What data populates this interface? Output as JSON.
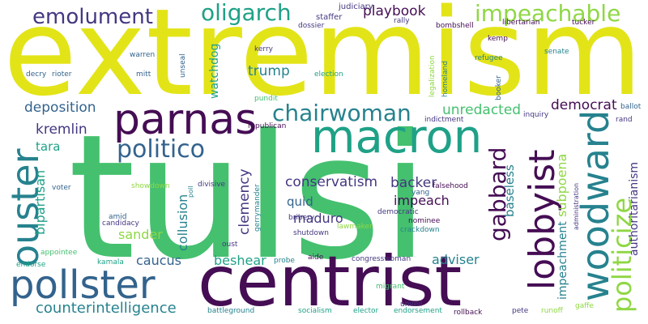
{
  "palette": {
    "yellow": "#e3e418",
    "green": "#45c06f",
    "lightgreen": "#8fd744",
    "teal": "#1fa187",
    "cyan": "#26828e",
    "blue": "#33638d",
    "indigo": "#453781",
    "purple": "#450d54"
  },
  "words": [
    {
      "text": "extremism"
    },
    {
      "text": "tulsi"
    },
    {
      "text": "centrist"
    },
    {
      "text": "macron"
    },
    {
      "text": "parnas"
    },
    {
      "text": "pollster"
    },
    {
      "text": "ouster"
    },
    {
      "text": "woodward"
    },
    {
      "text": "lobbyist"
    },
    {
      "text": "politicize"
    },
    {
      "text": "impeachable"
    },
    {
      "text": "oligarch"
    },
    {
      "text": "emolument"
    },
    {
      "text": "politico"
    },
    {
      "text": "chairwoman"
    },
    {
      "text": "gabbard"
    },
    {
      "text": "conservatism"
    },
    {
      "text": "counterintelligence"
    },
    {
      "text": "playbook"
    },
    {
      "text": "deposition"
    },
    {
      "text": "unredacted"
    },
    {
      "text": "democrat"
    },
    {
      "text": "kremlin"
    },
    {
      "text": "trump"
    },
    {
      "text": "backer"
    },
    {
      "text": "impeach"
    },
    {
      "text": "maduro"
    },
    {
      "text": "sander"
    },
    {
      "text": "caucus"
    },
    {
      "text": "beshear"
    },
    {
      "text": "adviser"
    },
    {
      "text": "quid"
    },
    {
      "text": "tara"
    },
    {
      "text": "clemency"
    },
    {
      "text": "bipartisan"
    },
    {
      "text": "collusion"
    },
    {
      "text": "subpoena"
    },
    {
      "text": "baseless"
    },
    {
      "text": "impeachment"
    },
    {
      "text": "authoritarianism"
    },
    {
      "text": "watchdog"
    },
    {
      "text": "judiciary"
    },
    {
      "text": "staffer"
    },
    {
      "text": "dossier"
    },
    {
      "text": "rally"
    },
    {
      "text": "bombshell"
    },
    {
      "text": "libertarian"
    },
    {
      "text": "tucker"
    },
    {
      "text": "kemp"
    },
    {
      "text": "refugee"
    },
    {
      "text": "senate"
    },
    {
      "text": "legalization"
    },
    {
      "text": "homeland"
    },
    {
      "text": "booker"
    },
    {
      "text": "kerry"
    },
    {
      "text": "warren"
    },
    {
      "text": "mitt"
    },
    {
      "text": "unseal"
    },
    {
      "text": "election"
    },
    {
      "text": "decry"
    },
    {
      "text": "rioter"
    },
    {
      "text": "pundit"
    },
    {
      "text": "republican"
    },
    {
      "text": "indictment"
    },
    {
      "text": "inquiry"
    },
    {
      "text": "rand"
    },
    {
      "text": "ballot"
    },
    {
      "text": "showdown"
    },
    {
      "text": "poll"
    },
    {
      "text": "divisive"
    },
    {
      "text": "gerrymander"
    },
    {
      "text": "falsehood"
    },
    {
      "text": "yang"
    },
    {
      "text": "administration"
    },
    {
      "text": "voter"
    },
    {
      "text": "amid"
    },
    {
      "text": "bribery"
    },
    {
      "text": "candidacy"
    },
    {
      "text": "democratic"
    },
    {
      "text": "nominee"
    },
    {
      "text": "crackdown"
    },
    {
      "text": "shutdown"
    },
    {
      "text": "lawmaker"
    },
    {
      "text": "oust"
    },
    {
      "text": "appointee"
    },
    {
      "text": "kamala"
    },
    {
      "text": "endorse"
    },
    {
      "text": "probe"
    },
    {
      "text": "aide"
    },
    {
      "text": "congresswoman"
    },
    {
      "text": "migrant"
    },
    {
      "text": "unveil"
    },
    {
      "text": "battleground"
    },
    {
      "text": "socialism"
    },
    {
      "text": "elector"
    },
    {
      "text": "endorsement"
    },
    {
      "text": "rollback"
    },
    {
      "text": "pete"
    },
    {
      "text": "runoff"
    },
    {
      "text": "gaffe"
    }
  ]
}
